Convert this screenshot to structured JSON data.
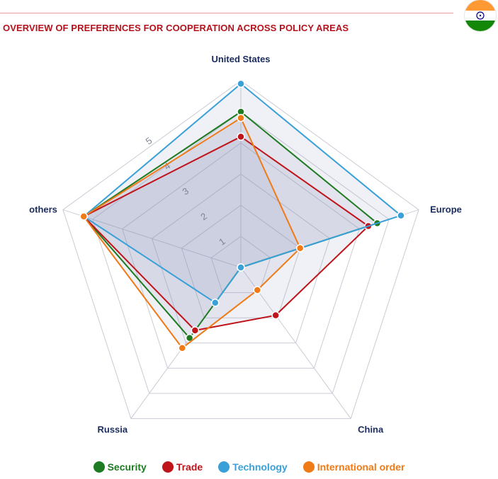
{
  "header": {
    "title": "OVERVIEW OF PREFERENCES FOR COOPERATION ACROSS POLICY AREAS"
  },
  "flag": {
    "icon": "india-flag-icon",
    "colors": [
      "#FF9933",
      "#FFFFFF",
      "#138808"
    ],
    "chakra": "#000080"
  },
  "chart_data": {
    "type": "radar",
    "axes": [
      "United States",
      "Europe",
      "China",
      "Russia",
      "others"
    ],
    "rlim": [
      0,
      6
    ],
    "tick_labels": [
      "1",
      "2",
      "3",
      "4",
      "5"
    ],
    "grid": true,
    "legend_placement": "bottom",
    "series": [
      {
        "name": "Security",
        "color": "#1e7b22",
        "values": [
          5.0,
          4.6,
          0.0,
          2.8,
          5.3
        ]
      },
      {
        "name": "Trade",
        "color": "#c0141b",
        "values": [
          4.2,
          4.3,
          1.9,
          2.5,
          5.3
        ]
      },
      {
        "name": "Technology",
        "color": "#3aa0d8",
        "values": [
          5.9,
          5.4,
          0.0,
          1.4,
          5.3
        ]
      },
      {
        "name": "International order",
        "color": "#f07a16",
        "values": [
          4.8,
          2.0,
          0.9,
          3.2,
          5.3
        ]
      }
    ]
  }
}
